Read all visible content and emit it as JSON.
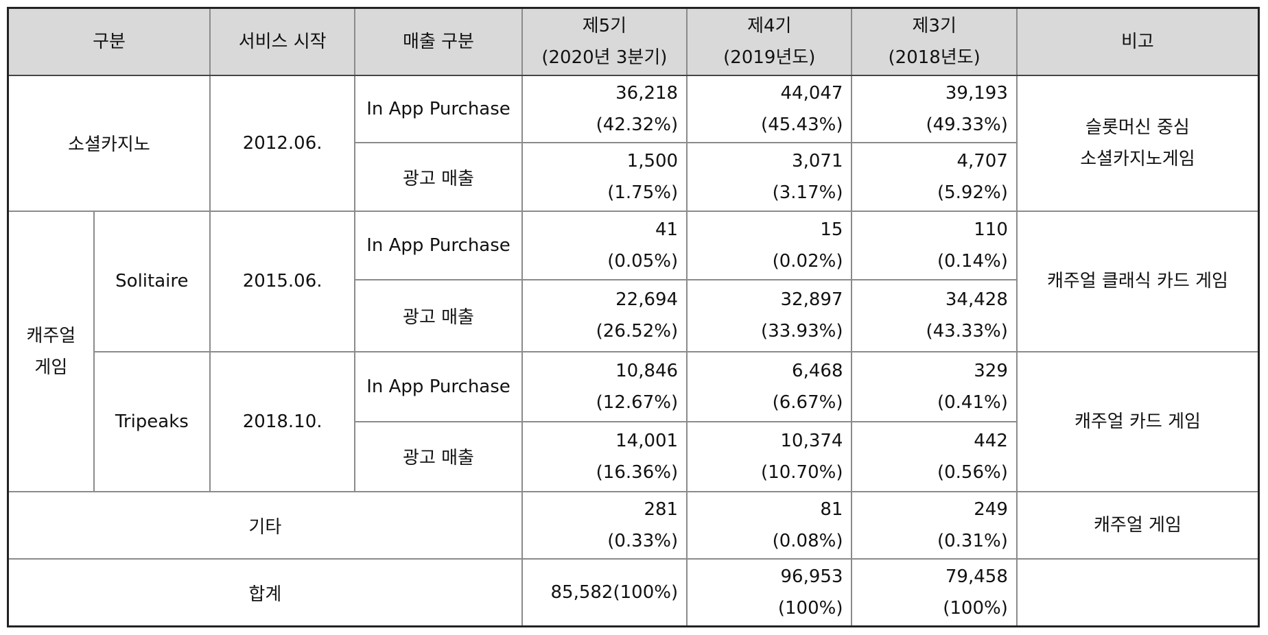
{
  "headers": {
    "category": "구분",
    "service_start": "서비스 시작",
    "revenue_type": "매출 구분",
    "period5": {
      "line1": "제5기",
      "line2": "(2020년 3분기)"
    },
    "period4": {
      "line1": "제4기",
      "line2": "(2019년도)"
    },
    "period3": {
      "line1": "제3기",
      "line2": "(2018년도)"
    },
    "remarks": "비고"
  },
  "social_casino": {
    "name": "소셜카지노",
    "start": "2012.06.",
    "iap": {
      "label": "In App Purchase",
      "p5": {
        "value": "36,218",
        "pct": "(42.32%)"
      },
      "p4": {
        "value": "44,047",
        "pct": "(45.43%)"
      },
      "p3": {
        "value": "39,193",
        "pct": "(49.33%)"
      }
    },
    "ad": {
      "label": "광고 매출",
      "p5": {
        "value": "1,500",
        "pct": "(1.75%)"
      },
      "p4": {
        "value": "3,071",
        "pct": "(3.17%)"
      },
      "p3": {
        "value": "4,707",
        "pct": "(5.92%)"
      }
    },
    "note_line1": "슬롯머신 중심",
    "note_line2": "소셜카지노게임"
  },
  "casual": {
    "group_line1": "캐주얼",
    "group_line2": "게임",
    "solitaire": {
      "name": "Solitaire",
      "start": "2015.06.",
      "iap": {
        "label": "In App Purchase",
        "p5": {
          "value": "41",
          "pct": "(0.05%)"
        },
        "p4": {
          "value": "15",
          "pct": "(0.02%)"
        },
        "p3": {
          "value": "110",
          "pct": "(0.14%)"
        }
      },
      "ad": {
        "label": "광고 매출",
        "p5": {
          "value": "22,694",
          "pct": "(26.52%)"
        },
        "p4": {
          "value": "32,897",
          "pct": "(33.93%)"
        },
        "p3": {
          "value": "34,428",
          "pct": "(43.33%)"
        }
      },
      "note": "캐주얼 클래식 카드 게임"
    },
    "tripeaks": {
      "name": "Tripeaks",
      "start": "2018.10.",
      "iap": {
        "label": "In App Purchase",
        "p5": {
          "value": "10,846",
          "pct": "(12.67%)"
        },
        "p4": {
          "value": "6,468",
          "pct": "(6.67%)"
        },
        "p3": {
          "value": "329",
          "pct": "(0.41%)"
        }
      },
      "ad": {
        "label": "광고 매출",
        "p5": {
          "value": "14,001",
          "pct": "(16.36%)"
        },
        "p4": {
          "value": "10,374",
          "pct": "(10.70%)"
        },
        "p3": {
          "value": "442",
          "pct": "(0.56%)"
        }
      },
      "note": "캐주얼 카드 게임"
    }
  },
  "other": {
    "label": "기타",
    "p5": {
      "value": "281",
      "pct": "(0.33%)"
    },
    "p4": {
      "value": "81",
      "pct": "(0.08%)"
    },
    "p3": {
      "value": "249",
      "pct": "(0.31%)"
    },
    "note": "캐주얼 게임"
  },
  "total": {
    "label": "합계",
    "p5": "85,582(100%)",
    "p4": {
      "value": "96,953",
      "pct": "(100%)"
    },
    "p3": {
      "value": "79,458",
      "pct": "(100%)"
    }
  }
}
